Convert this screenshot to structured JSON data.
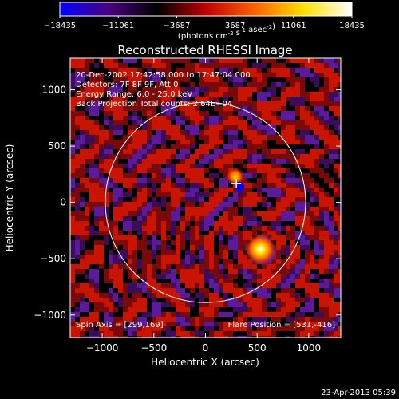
{
  "chart_data": {
    "type": "heatmap",
    "title": "Reconstructed RHESSI Image",
    "colorbar": {
      "ticks": [
        "-18435",
        "-11061",
        "-3687",
        "3687",
        "11061",
        "18435"
      ],
      "range": [
        -18435,
        18435
      ],
      "unit_prefix": "(photons cm",
      "unit_exp1": "-2",
      "unit_mid": " s",
      "unit_exp2": "-1",
      "unit_mid2": " asec",
      "unit_exp3": "-2",
      "unit_suffix": ")",
      "colors": [
        "#0000ff",
        "#4b0082",
        "#000000",
        "#c00000",
        "#ff6000",
        "#ffe000",
        "#ffffff"
      ]
    },
    "xlabel": "Heliocentric X (arcsec)",
    "ylabel": "Heliocentric Y (arcsec)",
    "xlim": [
      -1310,
      1310
    ],
    "ylim": [
      -1200,
      1280
    ],
    "xticks": [
      -1000,
      -500,
      0,
      500,
      1000
    ],
    "yticks": [
      -1000,
      -500,
      0,
      500,
      1000
    ],
    "xtick_labels": [
      "−1000",
      "−500",
      "0",
      "500",
      "1000"
    ],
    "ytick_labels": [
      "−1000",
      "−500",
      "0",
      "500",
      "1000"
    ],
    "info_lines": [
      "20-Dec-2002 17:42:58.000 to 17:47:04.000",
      "Detectors: 7F 8F 9F, Att 0",
      "Energy Range: 6.0 - 25.0 keV",
      "Back Projection    Total counts: 2.64E+04"
    ],
    "spin_axis": "Spin Axis = [299,169]",
    "flare_position": "Flare Position = [531,-416]",
    "solar_limb": {
      "cx": 0,
      "cy": 0,
      "r": 970
    },
    "sources": [
      {
        "x": 531,
        "y": -416,
        "peak": 18435
      },
      {
        "x": 290,
        "y": 230,
        "peak": 11061
      }
    ],
    "negative_feature": {
      "x": 299,
      "y": 169
    }
  },
  "footer": {
    "timestamp": "23-Apr-2013 05:39"
  }
}
